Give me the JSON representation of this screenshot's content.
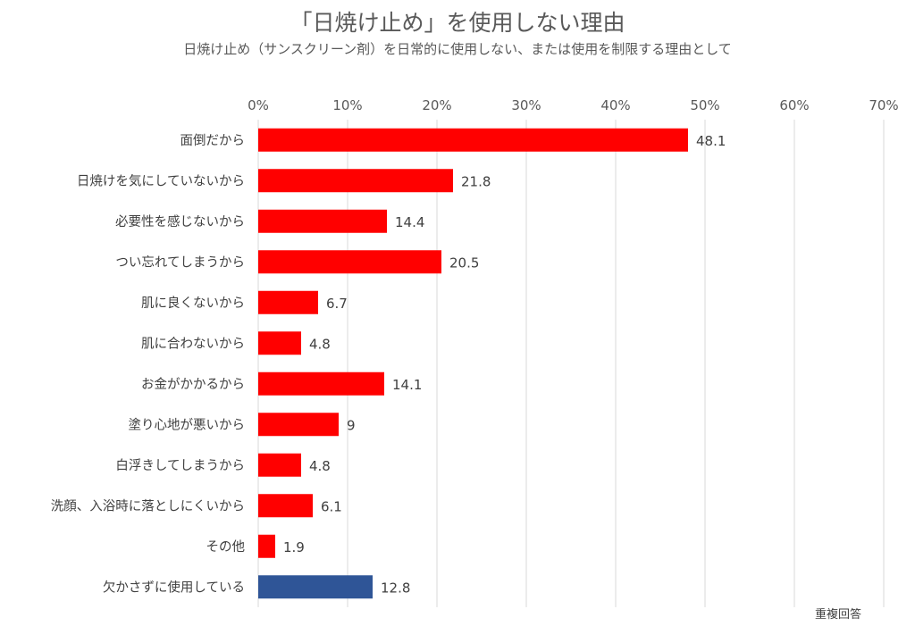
{
  "chart_data": {
    "type": "bar",
    "orientation": "horizontal",
    "title": "「日焼け止め」を使用しない理由",
    "subtitle": "日焼け止め（サンスクリーン剤）を日常的に使用しない、または使用を制限する理由として",
    "note": "重複回答",
    "xlabel": "",
    "ylabel": "",
    "xlim": [
      0,
      70
    ],
    "x_ticks": [
      "0%",
      "10%",
      "20%",
      "30%",
      "40%",
      "50%",
      "60%",
      "70%"
    ],
    "grid": true,
    "categories": [
      "面倒だから",
      "日焼けを気にしていないから",
      "必要性を感じないから",
      "つい忘れてしまうから",
      "肌に良くないから",
      "肌に合わないから",
      "お金がかかるから",
      "塗り心地が悪いから",
      "白浮きしてしまうから",
      "洗顔、入浴時に落としにくいから",
      "その他",
      "欠かさずに使用している"
    ],
    "values": [
      48.1,
      21.8,
      14.4,
      20.5,
      6.7,
      4.8,
      14.1,
      9,
      4.8,
      6.1,
      1.9,
      12.8
    ],
    "labels": [
      "48.1",
      "21.8",
      "14.4",
      "20.5",
      "6.7",
      "4.8",
      "14.1",
      "9",
      "4.8",
      "6.1",
      "1.9",
      "12.8"
    ],
    "colors": [
      "#FF0000",
      "#FF0000",
      "#FF0000",
      "#FF0000",
      "#FF0000",
      "#FF0000",
      "#FF0000",
      "#FF0000",
      "#FF0000",
      "#FF0000",
      "#FF0000",
      "#2F5597"
    ]
  }
}
